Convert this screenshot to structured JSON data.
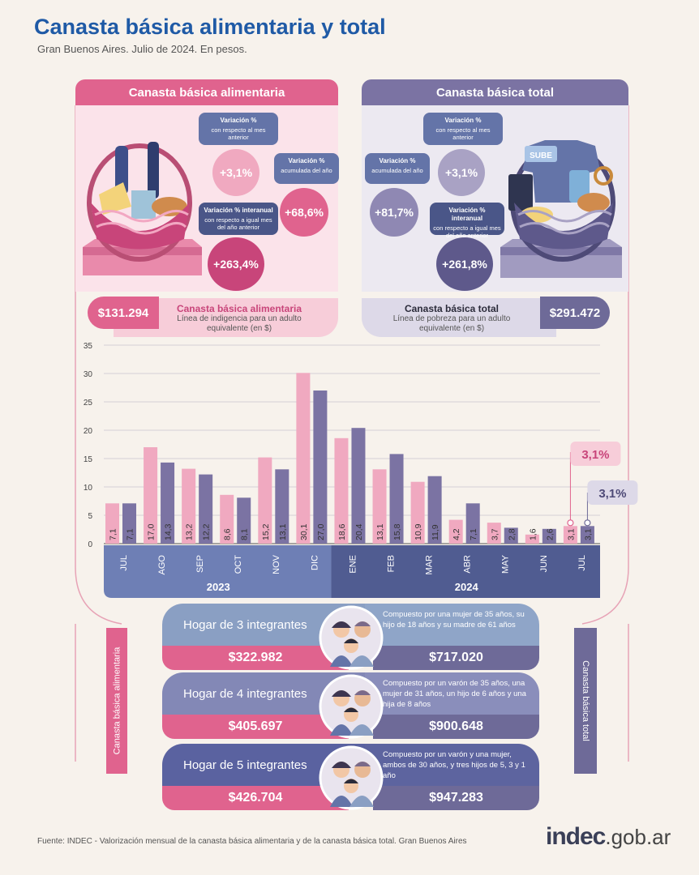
{
  "title": "Canasta básica alimentaria y total",
  "subtitle": "Gran Buenos Aires. Julio de 2024. En pesos.",
  "colors": {
    "pink": "#e0638e",
    "pink_light": "#f0a9c0",
    "violet": "#6e6a98",
    "violet_light": "#a9a2c4",
    "blue_band": "#6474a8",
    "title_blue": "#1f5aa6"
  },
  "cba": {
    "header": "Canasta básica alimentaria",
    "var_mes": {
      "title": "Variación %",
      "desc": "con respecto al mes anterior",
      "value": "+3,1%"
    },
    "var_acum": {
      "title": "Variación %",
      "desc": "acumulada del año",
      "value": "+68,6%"
    },
    "var_inter": {
      "title": "Variación % interanual",
      "desc": "con respecto a igual mes del año anterior",
      "value": "+263,4%"
    },
    "price": "$131.294",
    "legend_title": "Canasta básica alimentaria",
    "legend_desc": "Línea de indigencia para un adulto equivalente (en $)"
  },
  "cbt": {
    "header": "Canasta básica total",
    "var_mes": {
      "title": "Variación %",
      "desc": "con respecto al mes anterior",
      "value": "+3,1%"
    },
    "var_acum": {
      "title": "Variación %",
      "desc": "acumulada del año",
      "value": "+81,7%"
    },
    "var_inter": {
      "title": "Variación % interanual",
      "desc": "con respecto a igual mes del año anterior",
      "value": "+261,8%"
    },
    "price": "$291.472",
    "legend_title": "Canasta básica total",
    "legend_desc": "Línea de pobreza para un adulto equivalente (en $)",
    "card_text": "SUBE"
  },
  "chart_data": {
    "type": "bar",
    "categories": [
      "JUL",
      "AGO",
      "SEP",
      "OCT",
      "NOV",
      "DIC",
      "ENE",
      "FEB",
      "MAR",
      "ABR",
      "MAY",
      "JUN",
      "JUL"
    ],
    "value_labels": {
      "Canasta básica alimentaria": [
        "7,1",
        "17,0",
        "13,2",
        "8,6",
        "15,2",
        "30,1",
        "18,6",
        "13,1",
        "10,9",
        "4,2",
        "3,7",
        "1,6",
        "3,1"
      ],
      "Canasta básica total": [
        "7,1",
        "14,3",
        "12,2",
        "8,1",
        "13,1",
        "27,0",
        "20,4",
        "15,8",
        "11,9",
        "7,1",
        "2,8",
        "2,6",
        "3,1"
      ]
    },
    "series": [
      {
        "name": "Canasta básica alimentaria",
        "color": "#f0a9c0",
        "values": [
          7.1,
          17.0,
          13.2,
          8.6,
          15.2,
          30.1,
          18.6,
          13.1,
          10.9,
          4.2,
          3.7,
          1.6,
          3.1
        ]
      },
      {
        "name": "Canasta básica total",
        "color": "#7b73a3",
        "values": [
          7.1,
          14.3,
          12.2,
          8.1,
          13.1,
          27.0,
          20.4,
          15.8,
          11.9,
          7.1,
          2.8,
          2.6,
          3.1
        ]
      }
    ],
    "years": [
      {
        "label": "2023",
        "from": 0,
        "to": 5
      },
      {
        "label": "2024",
        "from": 6,
        "to": 12
      }
    ],
    "yticks": [
      0,
      5,
      10,
      15,
      20,
      25,
      30,
      35
    ],
    "ylim": [
      0,
      35
    ],
    "callouts": {
      "cba": "3,1%",
      "cbt": "3,1%"
    }
  },
  "households": [
    {
      "label": "Hogar de 3 integrantes",
      "desc": "Compuesto por una mujer de 35 años, su hijo de 18 años y su madre de 61 años",
      "cba": "$322.982",
      "cbt": "$717.020"
    },
    {
      "label": "Hogar de 4 integrantes",
      "desc": "Compuesto por un varón de 35 años, una mujer de 31 años, un hijo de 6 años y una hija de 8 años",
      "cba": "$405.697",
      "cbt": "$900.648"
    },
    {
      "label": "Hogar de 5 integrantes",
      "desc": "Compuesto por un varón y una mujer, ambos de 30 años, y tres hijos de 5, 3 y 1 año",
      "cba": "$426.704",
      "cbt": "$947.283"
    }
  ],
  "side": {
    "left": "Canasta básica alimentaria",
    "right": "Canasta básica total"
  },
  "source": "Fuente: INDEC - Valorización mensual de la canasta básica alimentaria y de la canasta básica total. Gran Buenos Aires",
  "logo": {
    "main": "indec",
    "domain": ".gob.ar"
  }
}
